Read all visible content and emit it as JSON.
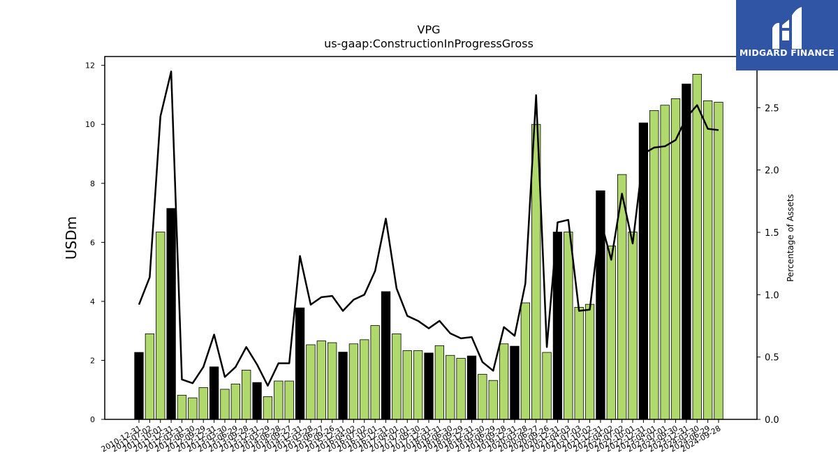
{
  "title": "VPG",
  "subtitle": "us-gaap:ConstructionInProgressGross",
  "logo": {
    "text": "MIDGARD FINANCE"
  },
  "colors": {
    "bar_default": "#b0d96d",
    "bar_highlight": "#000000",
    "line": "#000000"
  },
  "chart_data": {
    "type": "bar",
    "ylabel": "USDm",
    "y2label": "Percentage of Assets",
    "ylim": [
      0,
      12.3
    ],
    "y2lim": [
      0,
      2.91
    ],
    "yticks": [
      "0",
      "2",
      "4",
      "6",
      "8",
      "10",
      "12"
    ],
    "y2ticks": [
      "0.0",
      "0.5",
      "1.0",
      "1.5",
      "2.0",
      "2.5"
    ],
    "categories": [
      "2010-12-31",
      "2011-07-02",
      "2011-10-01",
      "2011-12-31",
      "2012-03-31",
      "2012-06-30",
      "2012-09-29",
      "2012-12-31",
      "2013-03-30",
      "2013-06-29",
      "2013-09-28",
      "2013-12-31",
      "2014-03-29",
      "2014-06-28",
      "2014-09-27",
      "2014-12-31",
      "2015-03-28",
      "2015-06-27",
      "2015-09-26",
      "2015-12-31",
      "2016-04-02",
      "2016-07-02",
      "2016-10-01",
      "2016-12-31",
      "2017-04-01",
      "2017-07-01",
      "2017-09-30",
      "2017-12-31",
      "2018-03-31",
      "2018-06-30",
      "2018-09-29",
      "2018-12-31",
      "2019-03-30",
      "2019-06-29",
      "2019-09-28",
      "2019-12-31",
      "2020-03-28",
      "2020-06-27",
      "2020-09-26",
      "2020-12-31",
      "2021-04-03",
      "2021-07-03",
      "2021-10-02",
      "2021-12-31",
      "2022-04-02",
      "2022-07-02",
      "2022-10-01",
      "2022-12-31",
      "2023-04-01",
      "2023-07-01",
      "2023-09-30",
      "2023-12-31",
      "2024-03-30",
      "2024-06-29",
      "2024-09-28"
    ],
    "series": [
      {
        "type": "bar",
        "values": [
          2.27,
          2.9,
          6.35,
          7.15,
          0.82,
          0.73,
          1.08,
          1.78,
          1.02,
          1.2,
          1.67,
          1.25,
          0.77,
          1.3,
          1.3,
          3.78,
          2.53,
          2.66,
          2.6,
          2.28,
          2.56,
          2.7,
          3.18,
          4.33,
          2.9,
          2.33,
          2.33,
          2.25,
          2.5,
          2.17,
          2.07,
          2.15,
          1.53,
          1.32,
          2.56,
          2.48,
          3.95,
          10.0,
          2.27,
          6.35,
          6.35,
          3.8,
          3.9,
          7.75,
          5.88,
          8.3,
          6.35,
          10.05,
          10.47,
          10.65,
          10.87,
          11.37,
          11.7,
          10.8,
          10.75
        ],
        "highlight": [
          true,
          false,
          false,
          true,
          false,
          false,
          false,
          true,
          false,
          false,
          false,
          true,
          false,
          false,
          false,
          true,
          false,
          false,
          false,
          true,
          false,
          false,
          false,
          true,
          false,
          false,
          false,
          true,
          false,
          false,
          false,
          true,
          false,
          false,
          false,
          true,
          false,
          false,
          false,
          true,
          false,
          false,
          false,
          true,
          false,
          false,
          false,
          true,
          false,
          false,
          false,
          true,
          false,
          false,
          false
        ]
      },
      {
        "type": "line",
        "axis": "right",
        "values": [
          0.92,
          1.14,
          2.43,
          2.79,
          0.32,
          0.29,
          0.42,
          0.68,
          0.34,
          0.42,
          0.58,
          0.44,
          0.27,
          0.45,
          0.45,
          1.31,
          0.92,
          0.98,
          0.99,
          0.87,
          0.96,
          1.0,
          1.19,
          1.61,
          1.05,
          0.83,
          0.79,
          0.73,
          0.79,
          0.69,
          0.65,
          0.66,
          0.46,
          0.39,
          0.74,
          0.67,
          1.09,
          2.6,
          0.58,
          1.58,
          1.6,
          0.87,
          0.88,
          1.6,
          1.28,
          1.81,
          1.41,
          2.13,
          2.18,
          2.19,
          2.24,
          2.42,
          2.52,
          2.33,
          2.32
        ]
      }
    ]
  }
}
